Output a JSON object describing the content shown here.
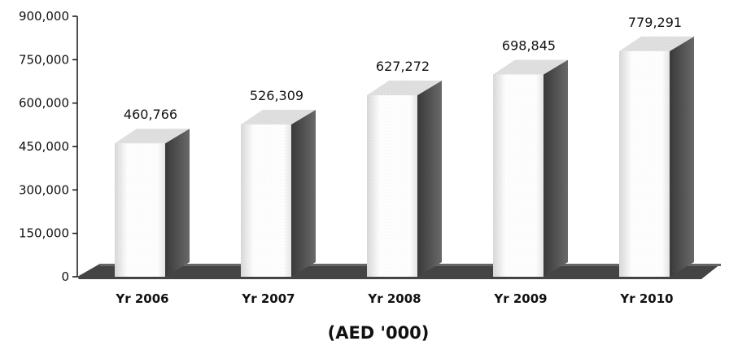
{
  "chart_data": {
    "type": "bar",
    "categories": [
      "Yr 2006",
      "Yr 2007",
      "Yr 2008",
      "Yr 2009",
      "Yr 2010"
    ],
    "values": [
      460766,
      526309,
      627272,
      698845,
      779291
    ],
    "data_labels": [
      "460,766",
      "526,309",
      "627,272",
      "698,845",
      "779,291"
    ],
    "y_ticks": [
      "0",
      "150,000",
      "300,000",
      "450,000",
      "600,000",
      "750,000",
      "900,000"
    ],
    "y_tick_values": [
      0,
      150000,
      300000,
      450000,
      600000,
      750000,
      900000
    ],
    "ylim": [
      0,
      900000
    ],
    "unit_label": "(AED '000)",
    "grid": false,
    "style": "3d-cylinder",
    "colors": {
      "bar_front": "#ffffff",
      "bar_side": "#555555",
      "floor": "#444444",
      "axis": "#111111"
    }
  }
}
